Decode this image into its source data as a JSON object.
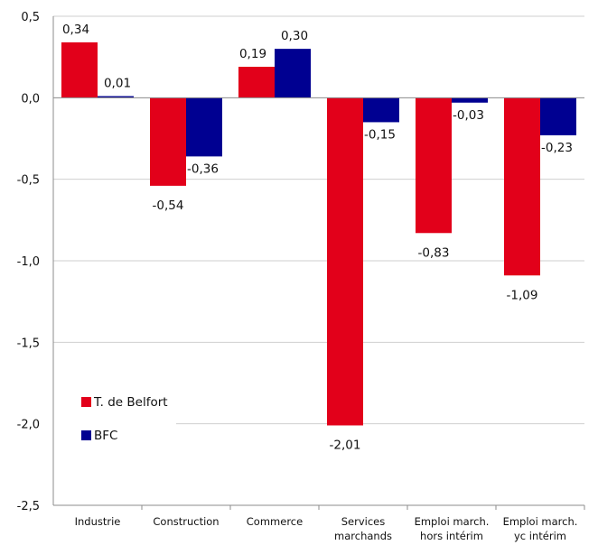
{
  "chart_data": {
    "type": "bar",
    "categories": [
      [
        "Industrie"
      ],
      [
        "Construction"
      ],
      [
        "Commerce"
      ],
      [
        "Services",
        "marchands"
      ],
      [
        "Emploi march.",
        "hors intérim"
      ],
      [
        "Emploi march.",
        "yc intérim"
      ]
    ],
    "series": [
      {
        "name": "T. de Belfort",
        "color": "#e2001a",
        "values": [
          0.34,
          -0.54,
          0.19,
          -2.01,
          -0.83,
          -1.09
        ],
        "labels": [
          "0,34",
          "-0,54",
          "0,19",
          "-2,01",
          "-0,83",
          "-1,09"
        ]
      },
      {
        "name": "BFC",
        "color": "#000091",
        "values": [
          0.01,
          -0.36,
          0.3,
          -0.15,
          -0.03,
          -0.23
        ],
        "labels": [
          "0,01",
          "-0,36",
          "0,30",
          "-0,15",
          "-0,03",
          "-0,23"
        ]
      }
    ],
    "ylim": [
      -2.5,
      0.5
    ],
    "yticks": [
      0.5,
      0.0,
      -0.5,
      -1.0,
      -1.5,
      -2.0,
      -2.5
    ],
    "ytick_labels": [
      "0,5",
      "0,0",
      "-0,5",
      "-1,0",
      "-1,5",
      "-2,0",
      "-2,5"
    ],
    "grid": true,
    "legend_position": "bottom-left",
    "title": "",
    "xlabel": "",
    "ylabel": ""
  }
}
